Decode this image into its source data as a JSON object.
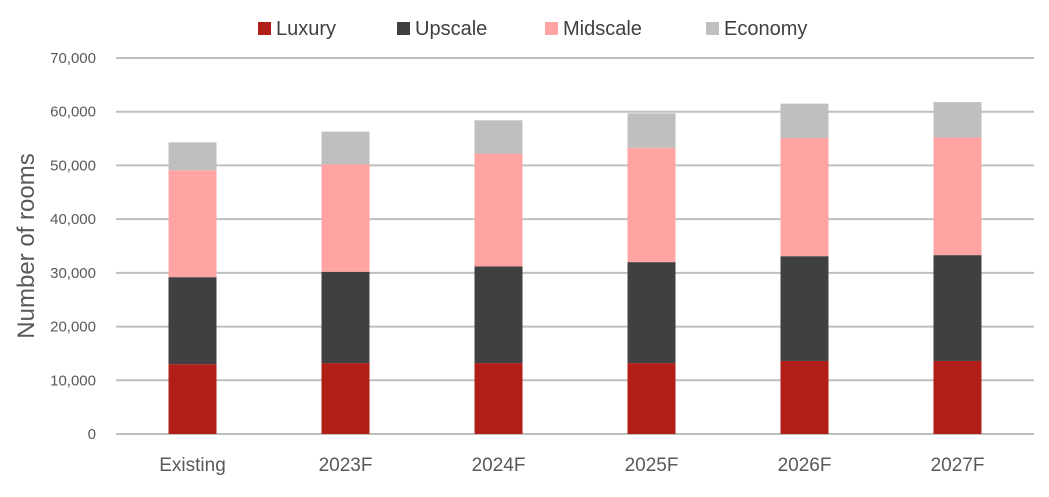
{
  "chart_data": {
    "type": "bar",
    "stacked": true,
    "categories": [
      "Existing",
      "2023F",
      "2024F",
      "2025F",
      "2026F",
      "2027F"
    ],
    "series": [
      {
        "name": "Luxury",
        "color": "#B01E17",
        "values": [
          13000,
          13200,
          13200,
          13200,
          13600,
          13600
        ]
      },
      {
        "name": "Upscale",
        "color": "#404042",
        "values": [
          16200,
          17000,
          18000,
          18800,
          19500,
          19700
        ]
      },
      {
        "name": "Midscale",
        "color": "#FFA3A3",
        "values": [
          19900,
          20000,
          21000,
          21300,
          22000,
          21900
        ]
      },
      {
        "name": "Economy",
        "color": "#BFBFBF",
        "values": [
          5200,
          6100,
          6200,
          6400,
          6400,
          6600
        ]
      }
    ],
    "ylabel": "Number of rooms",
    "ylim": [
      0,
      70000
    ],
    "yticks": [
      0,
      10000,
      20000,
      30000,
      40000,
      50000,
      60000,
      70000
    ],
    "ytick_labels": [
      "0",
      "10,000",
      "20,000",
      "30,000",
      "40,000",
      "50,000",
      "60,000",
      "70,000"
    ],
    "grid": true,
    "legend_position": "top-center",
    "gridline_color": "#BFBFBF"
  }
}
